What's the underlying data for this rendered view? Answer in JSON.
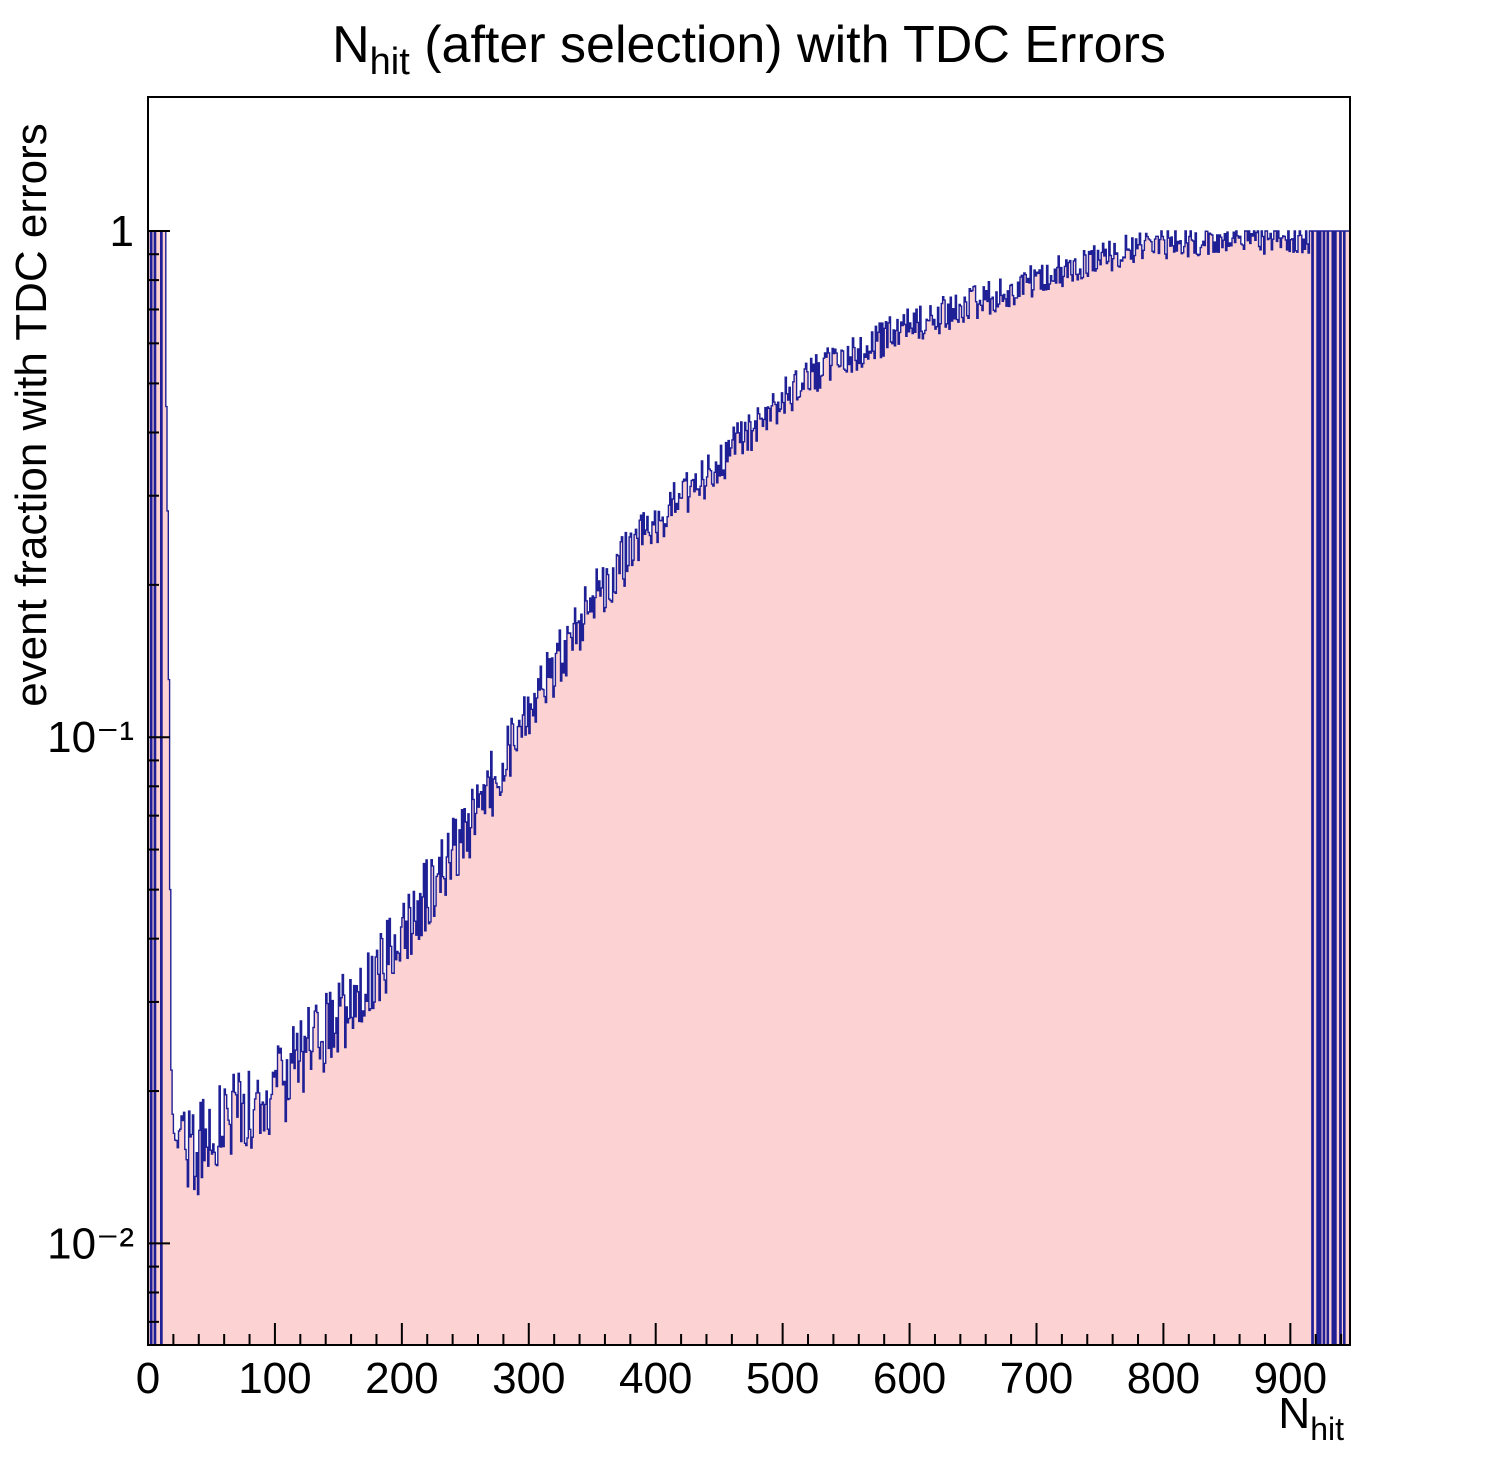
{
  "title": {
    "prefix": "N",
    "subscript": "hit",
    "rest": " (after selection) with TDC Errors"
  },
  "axes": {
    "y_title": "event fraction with TDC errors",
    "x_title_prefix": "N",
    "x_title_subscript": "hit"
  },
  "chart_data": {
    "type": "bar",
    "title": "N_hit (after selection) with TDC Errors",
    "xlabel": "N_hit",
    "ylabel": "event fraction with TDC errors",
    "xlim": [
      0,
      947
    ],
    "ylim": [
      0.0063,
      1.84
    ],
    "y_scale": "log",
    "grid": false,
    "legend": "none",
    "bin_width": 1,
    "colors": {
      "fill": "#fcd2d2",
      "line": "#1f1f96",
      "axis": "#000000",
      "background": "#ffffff"
    },
    "x_ticks": [
      {
        "value": 0,
        "label": "0"
      },
      {
        "value": 100,
        "label": "100"
      },
      {
        "value": 200,
        "label": "200"
      },
      {
        "value": 300,
        "label": "300"
      },
      {
        "value": 400,
        "label": "400"
      },
      {
        "value": 500,
        "label": "500"
      },
      {
        "value": 600,
        "label": "600"
      },
      {
        "value": 700,
        "label": "700"
      },
      {
        "value": 800,
        "label": "800"
      },
      {
        "value": 900,
        "label": "900"
      }
    ],
    "x_minor_step": 20,
    "y_ticks": [
      {
        "value": 1,
        "label": "1"
      },
      {
        "value": 0.1,
        "label": "10⁻¹"
      },
      {
        "value": 0.01,
        "label": "10⁻²"
      }
    ],
    "start_bins": [
      1,
      1,
      0,
      1,
      1,
      0,
      1,
      1,
      1,
      1,
      0,
      1,
      1,
      1,
      0.45,
      0.28,
      0.13,
      0.05,
      0.022,
      0.018,
      0.0165,
      0.016
    ],
    "trend_anchors": [
      [
        22,
        0.016
      ],
      [
        30,
        0.0148
      ],
      [
        40,
        0.0152
      ],
      [
        55,
        0.0175
      ],
      [
        70,
        0.0185
      ],
      [
        85,
        0.019
      ],
      [
        100,
        0.0205
      ],
      [
        115,
        0.022
      ],
      [
        130,
        0.025
      ],
      [
        150,
        0.028
      ],
      [
        170,
        0.032
      ],
      [
        190,
        0.038
      ],
      [
        210,
        0.045
      ],
      [
        230,
        0.054
      ],
      [
        250,
        0.065
      ],
      [
        270,
        0.08
      ],
      [
        290,
        0.1
      ],
      [
        310,
        0.125
      ],
      [
        330,
        0.15
      ],
      [
        350,
        0.185
      ],
      [
        370,
        0.215
      ],
      [
        390,
        0.25
      ],
      [
        410,
        0.285
      ],
      [
        430,
        0.315
      ],
      [
        450,
        0.345
      ],
      [
        470,
        0.39
      ],
      [
        490,
        0.44
      ],
      [
        510,
        0.49
      ],
      [
        530,
        0.53
      ],
      [
        550,
        0.565
      ],
      [
        570,
        0.6
      ],
      [
        590,
        0.635
      ],
      [
        610,
        0.66
      ],
      [
        630,
        0.69
      ],
      [
        650,
        0.72
      ],
      [
        670,
        0.75
      ],
      [
        690,
        0.785
      ],
      [
        710,
        0.82
      ],
      [
        730,
        0.85
      ],
      [
        750,
        0.88
      ],
      [
        770,
        0.915
      ],
      [
        790,
        0.94
      ],
      [
        810,
        0.95
      ],
      [
        830,
        0.955
      ],
      [
        850,
        0.96
      ],
      [
        870,
        0.96
      ],
      [
        890,
        0.965
      ],
      [
        905,
        0.97
      ],
      [
        915,
        0.97
      ]
    ],
    "end_bins": [
      1,
      1,
      0,
      1,
      1,
      1,
      0,
      1,
      0,
      1,
      1,
      0,
      1,
      1,
      0,
      1,
      1,
      1,
      0,
      1,
      0,
      1,
      1,
      1,
      0,
      1,
      1,
      0,
      1,
      1,
      1,
      1
    ],
    "noise": {
      "seed": 20240917,
      "base": 0.03,
      "scale": 0.07
    },
    "cap": 1.0
  }
}
